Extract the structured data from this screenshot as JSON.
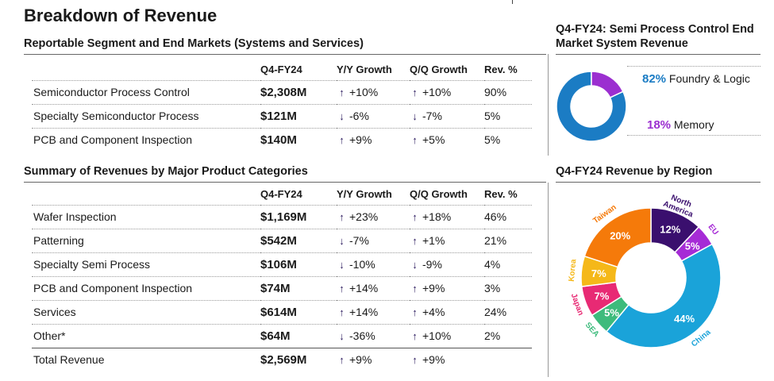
{
  "title": "Breakdown of Revenue",
  "segment_table": {
    "title": "Reportable Segment and End Markets (Systems and Services)",
    "headers": [
      "",
      "Q4-FY24",
      "Y/Y Growth",
      "Q/Q Growth",
      "Rev. %"
    ],
    "rows": [
      {
        "name": "Semiconductor Process Control",
        "amount": "$2,308M",
        "yy": "+10%",
        "yy_dir": "up",
        "qq": "+10%",
        "qq_dir": "up",
        "pct": "90%"
      },
      {
        "name": "Specialty Semiconductor Process",
        "amount": "$121M",
        "yy": "-6%",
        "yy_dir": "down",
        "qq": "-7%",
        "qq_dir": "down",
        "pct": "5%"
      },
      {
        "name": "PCB and Component Inspection",
        "amount": "$140M",
        "yy": "+9%",
        "yy_dir": "up",
        "qq": "+5%",
        "qq_dir": "up",
        "pct": "5%"
      }
    ]
  },
  "product_table": {
    "title": "Summary of Revenues by Major Product Categories",
    "headers": [
      "",
      "Q4-FY24",
      "Y/Y Growth",
      "Q/Q Growth",
      "Rev. %"
    ],
    "rows": [
      {
        "name": "Wafer Inspection",
        "amount": "$1,169M",
        "yy": "+23%",
        "yy_dir": "up",
        "qq": "+18%",
        "qq_dir": "up",
        "pct": "46%"
      },
      {
        "name": "Patterning",
        "amount": "$542M",
        "yy": "-7%",
        "yy_dir": "down",
        "qq": "+1%",
        "qq_dir": "up",
        "pct": "21%"
      },
      {
        "name": "Specialty Semi Process",
        "amount": "$106M",
        "yy": "-10%",
        "yy_dir": "down",
        "qq": "-9%",
        "qq_dir": "down",
        "pct": "4%"
      },
      {
        "name": "PCB and Component Inspection",
        "amount": "$74M",
        "yy": "+14%",
        "yy_dir": "up",
        "qq": "+9%",
        "qq_dir": "up",
        "pct": "3%"
      },
      {
        "name": "Services",
        "amount": "$614M",
        "yy": "+14%",
        "yy_dir": "up",
        "qq": "+4%",
        "qq_dir": "up",
        "pct": "24%"
      },
      {
        "name": "Other*",
        "amount": "$64M",
        "yy": "-36%",
        "yy_dir": "down",
        "qq": "+10%",
        "qq_dir": "up",
        "pct": "2%"
      }
    ],
    "total": {
      "name": "Total Revenue",
      "amount": "$2,569M",
      "yy": "+9%",
      "yy_dir": "up",
      "qq": "+9%",
      "qq_dir": "up",
      "pct": ""
    }
  },
  "arrows": {
    "up": "↑",
    "down": "↓"
  },
  "colors": {
    "amount": "#1aa3d9",
    "arrow": "#2b1a5e"
  },
  "chart_data": [
    {
      "type": "pie",
      "title": "Q4-FY24: Semi Process Control End Market System Revenue",
      "donut": true,
      "slices": [
        {
          "name": "Foundry & Logic",
          "value": 82,
          "label": "82%",
          "color": "#1b7cc4"
        },
        {
          "name": "Memory",
          "value": 18,
          "label": "18%",
          "color": "#9b2fd0"
        }
      ]
    },
    {
      "type": "pie",
      "title": "Q4-FY24 Revenue by Region",
      "donut": true,
      "slices": [
        {
          "name": "North America",
          "value": 12,
          "label": "12%",
          "color": "#3a0f6e"
        },
        {
          "name": "EU",
          "value": 5,
          "label": "5%",
          "color": "#a62bd6"
        },
        {
          "name": "China",
          "value": 44,
          "label": "44%",
          "color": "#1aa3d9"
        },
        {
          "name": "SEA",
          "value": 5,
          "label": "5%",
          "color": "#3dbb7c"
        },
        {
          "name": "Japan",
          "value": 7,
          "label": "7%",
          "color": "#e82a74"
        },
        {
          "name": "Korea",
          "value": 7,
          "label": "7%",
          "color": "#f5b819"
        },
        {
          "name": "Taiwan",
          "value": 20,
          "label": "20%",
          "color": "#f57a0a"
        }
      ]
    }
  ]
}
